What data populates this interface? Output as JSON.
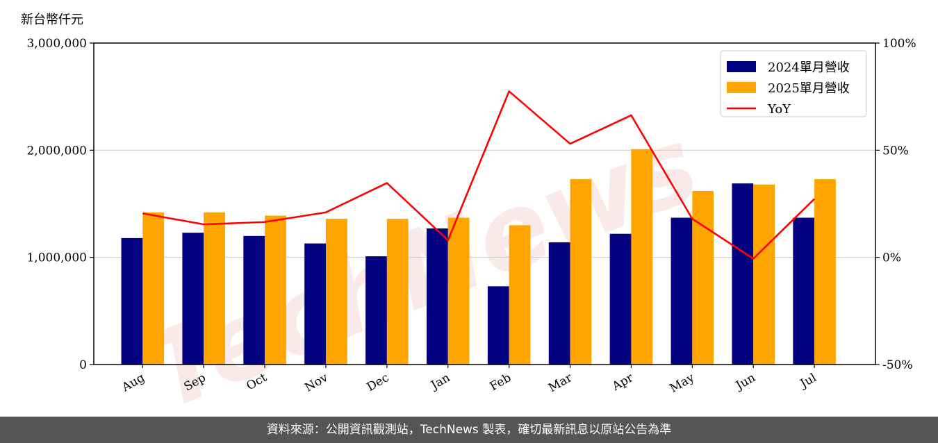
{
  "chart_data": {
    "type": "bar",
    "unit_label": "新台幣仟元",
    "categories": [
      "Aug",
      "Sep",
      "Oct",
      "Nov",
      "Dec",
      "Jan",
      "Feb",
      "Mar",
      "Apr",
      "May",
      "Jun",
      "Jul"
    ],
    "series": [
      {
        "name": "2024單月營收",
        "type": "bar",
        "color": "#000080",
        "values": [
          1180000,
          1230000,
          1200000,
          1130000,
          1010000,
          1270000,
          730000,
          1140000,
          1220000,
          1370000,
          1690000,
          1370000
        ]
      },
      {
        "name": "2025單月營收",
        "type": "bar",
        "color": "#FFA500",
        "values": [
          1420000,
          1420000,
          1390000,
          1360000,
          1360000,
          1370000,
          1300000,
          1730000,
          2010000,
          1620000,
          1680000,
          1730000
        ]
      },
      {
        "name": "YoY",
        "type": "line",
        "axis": "right",
        "color": "#FF0000",
        "values": [
          20.5,
          15.4,
          16.5,
          21.0,
          34.7,
          8.0,
          77.5,
          53.0,
          66.3,
          18.0,
          -0.6,
          27.3
        ]
      }
    ],
    "ylim": [
      0,
      3000000
    ],
    "yticks": [
      "0",
      "1,000,000",
      "2,000,000",
      "3,000,000"
    ],
    "y2lim": [
      -50,
      100
    ],
    "y2ticks": [
      "-50%",
      "0%",
      "50%",
      "100%"
    ],
    "grid": "horizontal",
    "legend_position": "top-right"
  },
  "watermark": "TechNews",
  "footer": "資料來源：公開資訊觀測站，TechNews 製表，確切最新訊息以原站公告為準"
}
